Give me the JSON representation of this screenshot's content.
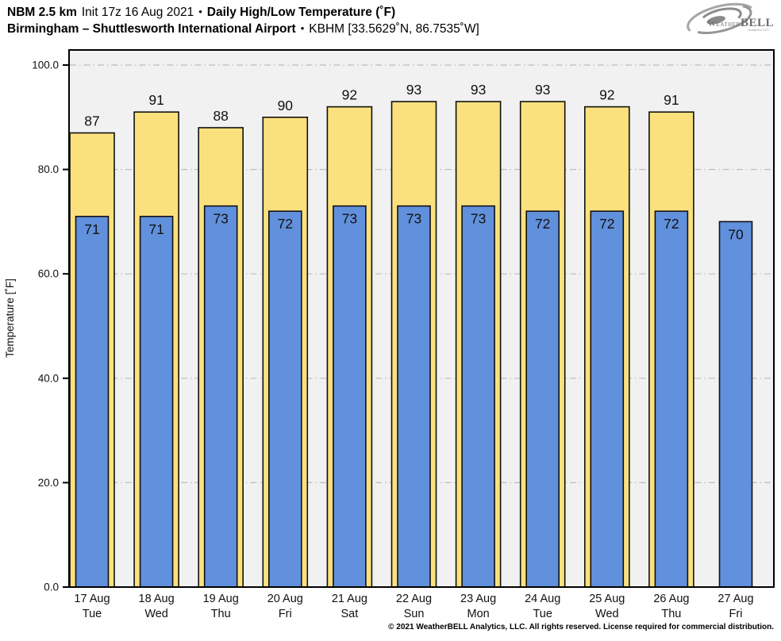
{
  "header": {
    "title_model": "NBM 2.5 km",
    "title_init": "Init 17z 16 Aug 2021",
    "title_sep": "•",
    "title_product": "Daily High/Low Temperature (˚F)",
    "subtitle_station": "Birmingham – Shuttlesworth International Airport",
    "subtitle_sep": "•",
    "subtitle_id": "KBHM [33.5629˚N, 86.7535˚W]",
    "logo_weather": "Weather",
    "logo_bell": "BELL",
    "logo_sub": "Analytics LLC"
  },
  "footer": {
    "copyright": "© 2021 WeatherBELL Analytics, LLC. All rights reserved. License required for commercial distribution."
  },
  "colors": {
    "plot_bg": "#F1F1F1",
    "grid": "#BDBDBD",
    "axis": "#000000",
    "bar_border": "#111111",
    "high_fill": "#FBE17E",
    "low_fill": "#6190DC",
    "text": "#111111",
    "logo_gray": "#9A9A9A"
  },
  "chart_data": {
    "type": "bar",
    "title": "Daily High/Low Temperature (˚F)",
    "subtitle": "Birmingham – Shuttlesworth International Airport • KBHM [33.5629˚N, 86.7535˚W]",
    "xlabel": "",
    "ylabel": "Temperature [˚F]",
    "ylim": [
      0,
      100
    ],
    "yticks": [
      0,
      20,
      40,
      60,
      80,
      100
    ],
    "ytick_decimals": 1,
    "grid": "horizontal dash-dot at yticks, plot area light gray",
    "legend": "none",
    "categories": [
      "17 Aug",
      "18 Aug",
      "19 Aug",
      "20 Aug",
      "21 Aug",
      "22 Aug",
      "23 Aug",
      "24 Aug",
      "25 Aug",
      "26 Aug",
      "27 Aug"
    ],
    "weekdays": [
      "Tue",
      "Wed",
      "Thu",
      "Fri",
      "Sat",
      "Sun",
      "Mon",
      "Tue",
      "Wed",
      "Thu",
      "Fri"
    ],
    "series": [
      {
        "name": "Daily High",
        "color": "#FBE17E",
        "values": [
          87,
          91,
          88,
          90,
          92,
          93,
          93,
          93,
          92,
          91,
          null
        ]
      },
      {
        "name": "Daily Low",
        "color": "#6190DC",
        "values": [
          71,
          71,
          73,
          72,
          73,
          73,
          73,
          72,
          72,
          72,
          70
        ]
      }
    ]
  }
}
